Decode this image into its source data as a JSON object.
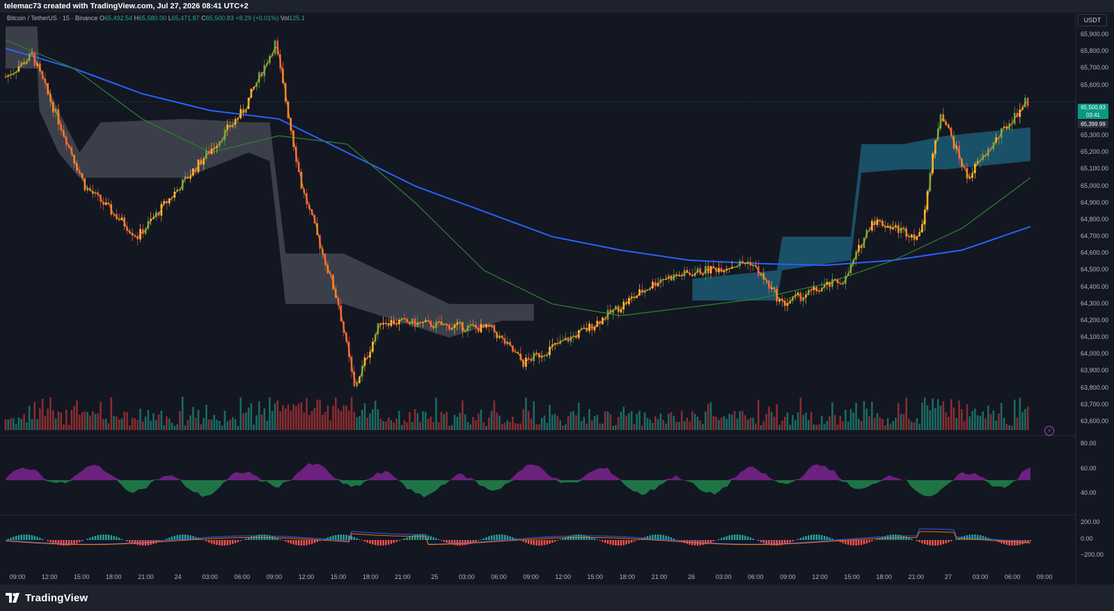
{
  "header": {
    "title": "telemac73 created with TradingView.com, Jul 27, 2026 08:41 UTC+2"
  },
  "legend": {
    "symbol": "Bitcoin / TetherUS · 15 · Binance",
    "o_label": "O",
    "o_value": "65,492.54",
    "h_label": "H",
    "h_value": "65,580.00",
    "l_label": "L",
    "l_value": "65,471.87",
    "c_label": "C",
    "c_value": "65,500.83",
    "change": "+8.29 (+0.01%)",
    "vol_label": "Vol",
    "vol_value": "125.1"
  },
  "currency": "USDT",
  "price_axis": [
    "65,900.00",
    "65,800.00",
    "65,700.00",
    "65,600.00",
    "65,300.00",
    "65,200.00",
    "65,100.00",
    "65,000.00",
    "64,900.00",
    "64,800.00",
    "64,700.00",
    "64,600.00",
    "64,500.00",
    "64,400.00",
    "64,300.00",
    "64,200.00",
    "64,100.00",
    "64,000.00",
    "63,900.00",
    "63,800.00",
    "63,700.00",
    "63,600.00"
  ],
  "last_price": {
    "price": "65,500.83",
    "countdown": "03:41"
  },
  "ref_price": "65,399.99",
  "rsi_axis": [
    "80.00",
    "60.00",
    "40.00"
  ],
  "macd_axis": [
    "200.00",
    "0.00",
    "−200.00"
  ],
  "time_axis": [
    "09:00",
    "12:00",
    "15:00",
    "18:00",
    "21:00",
    "24",
    "03:00",
    "06:00",
    "09:00",
    "12:00",
    "15:00",
    "18:00",
    "21:00",
    "25",
    "03:00",
    "06:00",
    "09:00",
    "12:00",
    "15:00",
    "18:00",
    "21:00",
    "26",
    "03:00",
    "06:00",
    "09:00",
    "12:00",
    "15:00",
    "18:00",
    "21:00",
    "27",
    "03:00",
    "06:00",
    "09:00"
  ],
  "footer": {
    "brand": "TradingView"
  },
  "colors": {
    "bull": "#26a69a",
    "bear": "#ef5350",
    "ema200": "#2962ff",
    "ema50": "#2e7d32",
    "fast": "#ff9800",
    "cloud_gray": "#4a4d57",
    "cloud_teal": "#1d5f7a",
    "rsi_up": "#9c27b0",
    "rsi_dn": "#26a65b"
  },
  "chart_data": {
    "type": "candlestick",
    "symbol": "BTCUSDT",
    "interval": "15",
    "ylim": [
      63550,
      65950
    ],
    "key_points": [
      {
        "t": "23 08:00",
        "price": 65650
      },
      {
        "t": "23 10:30",
        "price": 65780
      },
      {
        "t": "23 15:30",
        "price": 65000
      },
      {
        "t": "23 20:30",
        "price": 64700
      },
      {
        "t": "24 06:30",
        "price": 65450
      },
      {
        "t": "24 09:30",
        "price": 65850
      },
      {
        "t": "24 12:00",
        "price": 65000
      },
      {
        "t": "24 15:30",
        "price": 64300
      },
      {
        "t": "24 17:00",
        "price": 63800
      },
      {
        "t": "24 19:30",
        "price": 64200
      },
      {
        "t": "25 06:00",
        "price": 64150
      },
      {
        "t": "25 09:00",
        "price": 63950
      },
      {
        "t": "25 15:00",
        "price": 64150
      },
      {
        "t": "25 22:00",
        "price": 64450
      },
      {
        "t": "26 06:30",
        "price": 64550
      },
      {
        "t": "26 09:30",
        "price": 64300
      },
      {
        "t": "26 15:30",
        "price": 64450
      },
      {
        "t": "26 18:00",
        "price": 64800
      },
      {
        "t": "26 22:30",
        "price": 64700
      },
      {
        "t": "27 00:30",
        "price": 65450
      },
      {
        "t": "27 03:00",
        "price": 65050
      },
      {
        "t": "27 08:30",
        "price": 65500
      }
    ],
    "indicators": {
      "ema200": [
        65820,
        65700,
        65550,
        65450,
        65400,
        65200,
        65000,
        64850,
        64700,
        64620,
        64560,
        64540,
        64530,
        64560,
        64620,
        64760
      ],
      "ema50": [
        65870,
        65700,
        65400,
        65200,
        65300,
        65250,
        64900,
        64500,
        64300,
        64230,
        64280,
        64330,
        64420,
        64560,
        64750,
        65050
      ]
    }
  }
}
